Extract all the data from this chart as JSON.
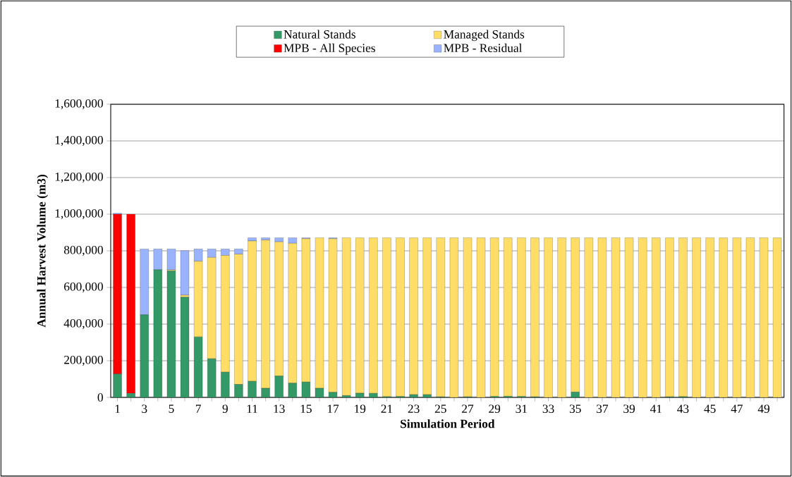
{
  "chart_data": {
    "type": "bar",
    "stacked": true,
    "xlabel": "Simulation Period",
    "ylabel": "Annual Harvest Volume (m3)",
    "categories": [
      "1",
      null,
      "3",
      null,
      "5",
      null,
      "7",
      null,
      "9",
      null,
      "11",
      null,
      "13",
      null,
      "15",
      null,
      "17",
      null,
      "19",
      null,
      "21",
      null,
      "23",
      null,
      "25",
      null,
      "27",
      null,
      "29",
      null,
      "31",
      null,
      "33",
      null,
      "35",
      null,
      "37",
      null,
      "39",
      null,
      "41",
      null,
      "43",
      null,
      "45",
      null,
      "47",
      null,
      "49",
      null
    ],
    "series": [
      {
        "name": "Natural Stands",
        "color": "#339966",
        "values": [
          128000,
          22000,
          451000,
          697000,
          690000,
          547000,
          330000,
          211000,
          138000,
          71000,
          88000,
          50000,
          117000,
          78000,
          84000,
          50000,
          28000,
          10000,
          23000,
          22000,
          4000,
          5000,
          15000,
          15000,
          3000,
          0,
          3000,
          0,
          5000,
          6000,
          5000,
          3000,
          0,
          0,
          29000,
          0,
          0,
          0,
          0,
          0,
          0,
          3000,
          4000,
          0,
          0,
          0,
          0,
          0,
          0,
          0
        ]
      },
      {
        "name": "Managed Stands",
        "color": "#ffdd66",
        "values": [
          0,
          0,
          0,
          0,
          6000,
          11000,
          413000,
          553000,
          637000,
          711000,
          766000,
          809000,
          732000,
          763000,
          782000,
          821000,
          838000,
          861000,
          848000,
          849000,
          867000,
          866000,
          856000,
          856000,
          868000,
          871000,
          868000,
          871000,
          866000,
          865000,
          866000,
          868000,
          871000,
          871000,
          842000,
          871000,
          871000,
          871000,
          871000,
          871000,
          871000,
          868000,
          867000,
          871000,
          871000,
          871000,
          871000,
          871000,
          871000,
          871000
        ]
      },
      {
        "name": "MPB - All Species",
        "color": "#ff0000",
        "values": [
          872000,
          978000,
          0,
          0,
          0,
          0,
          0,
          0,
          0,
          0,
          0,
          0,
          0,
          0,
          0,
          0,
          0,
          0,
          0,
          0,
          0,
          0,
          0,
          0,
          0,
          0,
          0,
          0,
          0,
          0,
          0,
          0,
          0,
          0,
          0,
          0,
          0,
          0,
          0,
          0,
          0,
          0,
          0,
          0,
          0,
          0,
          0,
          0,
          0,
          0
        ]
      },
      {
        "name": "MPB - Residual",
        "color": "#99b3ff",
        "values": [
          5000,
          0,
          359000,
          113000,
          114000,
          243000,
          67000,
          46000,
          35000,
          28000,
          17000,
          12000,
          22000,
          30000,
          5000,
          0,
          5000,
          0,
          0,
          0,
          0,
          0,
          0,
          0,
          0,
          0,
          0,
          0,
          0,
          0,
          0,
          0,
          0,
          0,
          0,
          0,
          0,
          0,
          0,
          0,
          0,
          0,
          0,
          0,
          0,
          0,
          0,
          0,
          0,
          0
        ]
      }
    ],
    "ylim": [
      0,
      1600000
    ],
    "yticks": [
      {
        "value": 0,
        "label": "0"
      },
      {
        "value": 200000,
        "label": "200,000"
      },
      {
        "value": 400000,
        "label": "400,000"
      },
      {
        "value": 600000,
        "label": "600,000"
      },
      {
        "value": 800000,
        "label": "800,000"
      },
      {
        "value": 1000000,
        "label": "1,000,000"
      },
      {
        "value": 1200000,
        "label": "1,200,000"
      },
      {
        "value": 1400000,
        "label": "1,400,000"
      },
      {
        "value": 1600000,
        "label": "1,600,000"
      }
    ],
    "grid": "y",
    "legend": "top"
  }
}
